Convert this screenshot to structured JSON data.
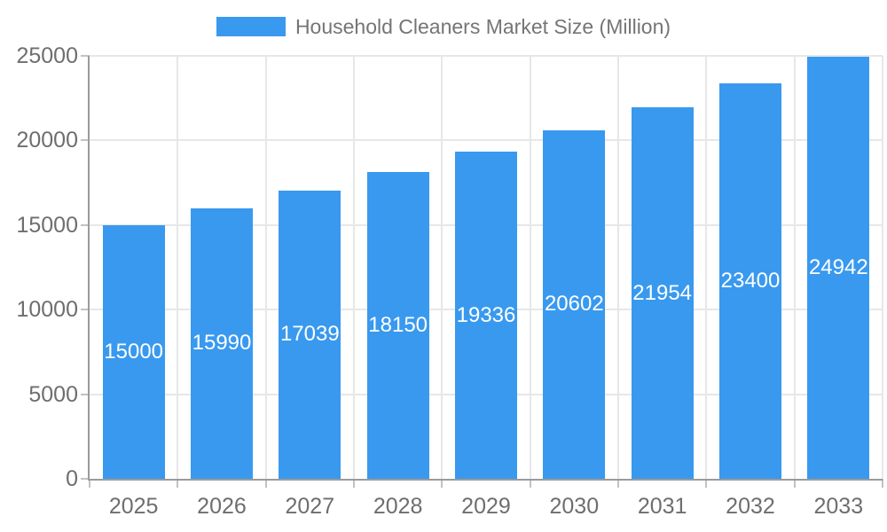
{
  "chart_data": {
    "type": "bar",
    "title": "Household Cleaners Market Size (Million)",
    "categories": [
      "2025",
      "2026",
      "2027",
      "2028",
      "2029",
      "2030",
      "2031",
      "2032",
      "2033"
    ],
    "values": [
      15000,
      15990,
      17039,
      18150,
      19336,
      20602,
      21954,
      23400,
      24942
    ],
    "xlabel": "",
    "ylabel": "",
    "ylim": [
      0,
      25000
    ],
    "yticks": [
      0,
      5000,
      10000,
      15000,
      20000,
      25000
    ],
    "grid": true,
    "legend_position": "top",
    "bar_labels_inside": true,
    "colors": {
      "bar": "#3999EF",
      "bar_label": "#FFFFFF",
      "grid": "#E7E7E7",
      "axis": "#9B9B9B",
      "tick": "#C2C2C2",
      "text": "#6E6E6E",
      "legend_text": "#757575"
    }
  }
}
